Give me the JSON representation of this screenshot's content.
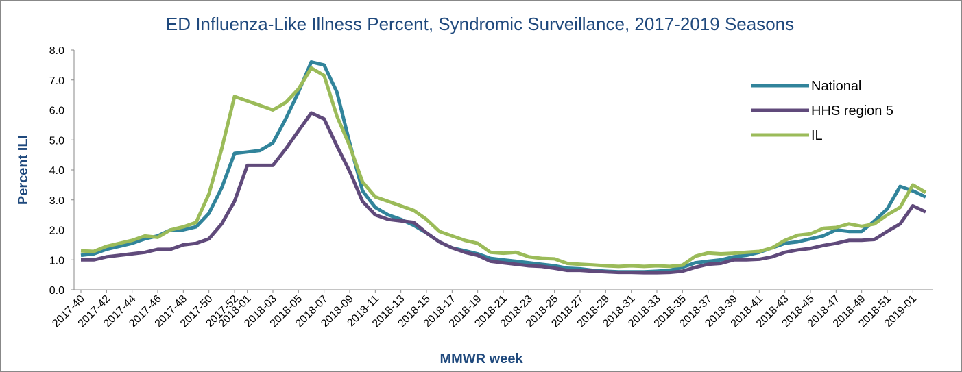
{
  "chart_data": {
    "type": "line",
    "title": "ED Influenza-Like Illness Percent, Syndromic Surveillance, 2017-2019 Seasons",
    "x_label": "MMWR week",
    "y_label": "Percent ILI",
    "categories": [
      "2017-40",
      null,
      "2017-42",
      null,
      "2017-44",
      null,
      "2017-46",
      null,
      "2017-48",
      null,
      "2017-50",
      null,
      "2017-52",
      "2018-01",
      null,
      "2018-03",
      null,
      "2018-05",
      null,
      "2018-07",
      null,
      "2018-09",
      null,
      "2018-11",
      null,
      "2018-13",
      null,
      "2018-15",
      null,
      "2018-17",
      null,
      "2018-19",
      null,
      "2018-21",
      null,
      "2018-23",
      null,
      "2018-25",
      null,
      "2018-27",
      null,
      "2018-29",
      null,
      "2018-31",
      null,
      "2018-33",
      null,
      "2018-35",
      null,
      "2018-37",
      null,
      "2018-39",
      null,
      "2018-41",
      null,
      "2018-43",
      null,
      "2018-45",
      null,
      "2018-47",
      null,
      "2018-49",
      null,
      "2018-51",
      null,
      "2019-01",
      null
    ],
    "series": [
      {
        "name": "National",
        "color": "#31849b",
        "values": [
          1.15,
          1.2,
          1.35,
          1.45,
          1.55,
          1.7,
          1.8,
          2.0,
          2.0,
          2.1,
          2.55,
          3.4,
          4.55,
          4.6,
          4.65,
          4.9,
          5.7,
          6.6,
          7.6,
          7.5,
          6.6,
          4.9,
          3.3,
          2.75,
          2.5,
          2.35,
          2.15,
          1.9,
          1.6,
          1.4,
          1.3,
          1.2,
          1.05,
          1.0,
          0.95,
          0.9,
          0.85,
          0.8,
          0.72,
          0.7,
          0.65,
          0.62,
          0.6,
          0.6,
          0.6,
          0.62,
          0.65,
          0.75,
          0.9,
          0.95,
          1.0,
          1.1,
          1.15,
          1.25,
          1.4,
          1.55,
          1.6,
          1.7,
          1.8,
          2.0,
          1.95,
          1.95,
          2.3,
          2.7,
          3.45,
          3.3,
          3.1
        ]
      },
      {
        "name": "HHS region 5",
        "color": "#604a7b",
        "values": [
          1.0,
          1.0,
          1.1,
          1.15,
          1.2,
          1.25,
          1.35,
          1.35,
          1.5,
          1.55,
          1.7,
          2.2,
          2.95,
          4.15,
          4.15,
          4.15,
          4.7,
          5.3,
          5.9,
          5.7,
          4.8,
          3.95,
          2.95,
          2.5,
          2.35,
          2.3,
          2.25,
          1.9,
          1.6,
          1.4,
          1.25,
          1.15,
          0.95,
          0.9,
          0.85,
          0.8,
          0.78,
          0.72,
          0.65,
          0.65,
          0.62,
          0.6,
          0.58,
          0.58,
          0.57,
          0.57,
          0.58,
          0.62,
          0.75,
          0.85,
          0.88,
          1.0,
          1.0,
          1.02,
          1.1,
          1.25,
          1.33,
          1.38,
          1.48,
          1.55,
          1.65,
          1.65,
          1.68,
          1.95,
          2.2,
          2.8,
          2.6
        ]
      },
      {
        "name": "IL",
        "color": "#9bbb59",
        "values": [
          1.3,
          1.28,
          1.45,
          1.55,
          1.65,
          1.8,
          1.75,
          2.0,
          2.1,
          2.25,
          3.2,
          4.7,
          6.45,
          6.3,
          6.15,
          6.0,
          6.25,
          6.7,
          7.4,
          7.15,
          5.8,
          4.8,
          3.6,
          3.1,
          2.95,
          2.8,
          2.65,
          2.35,
          1.95,
          1.8,
          1.65,
          1.55,
          1.25,
          1.22,
          1.25,
          1.1,
          1.05,
          1.03,
          0.88,
          0.85,
          0.83,
          0.8,
          0.78,
          0.8,
          0.78,
          0.8,
          0.78,
          0.82,
          1.12,
          1.23,
          1.2,
          1.22,
          1.25,
          1.28,
          1.4,
          1.65,
          1.82,
          1.87,
          2.05,
          2.08,
          2.2,
          2.12,
          2.2,
          2.5,
          2.75,
          3.5,
          3.25
        ]
      }
    ],
    "ylim": [
      0,
      8
    ],
    "yticks": [
      {
        "value": 0,
        "label": "0.0"
      },
      {
        "value": 1,
        "label": "1.0"
      },
      {
        "value": 2,
        "label": "2.0"
      },
      {
        "value": 3,
        "label": "3.0"
      },
      {
        "value": 4,
        "label": "4.0"
      },
      {
        "value": 5,
        "label": "5.0"
      },
      {
        "value": 6,
        "label": "6.0"
      },
      {
        "value": 7,
        "label": "7.0"
      },
      {
        "value": 8,
        "label": "8.0"
      }
    ],
    "grid": false,
    "legend": "upper right"
  }
}
